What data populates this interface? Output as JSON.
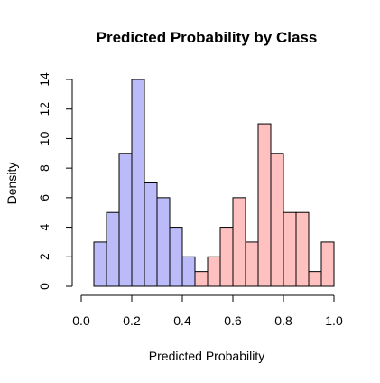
{
  "chart_data": {
    "type": "bar",
    "title": "Predicted Probability by Class",
    "xlabel": "Predicted Probability",
    "ylabel": "Density",
    "xlim": [
      0.0,
      1.0
    ],
    "ylim": [
      0,
      14
    ],
    "xticks": [
      "0.0",
      "0.2",
      "0.4",
      "0.6",
      "0.8",
      "1.0"
    ],
    "yticks": [
      "0",
      "2",
      "4",
      "6",
      "8",
      "10",
      "12",
      "14"
    ],
    "grid": false,
    "legend": "none",
    "series": [
      {
        "color": "#bbbbf9",
        "bins": [
          {
            "x0": 0.05,
            "x1": 0.1,
            "value": 3
          },
          {
            "x0": 0.1,
            "x1": 0.15,
            "value": 5
          },
          {
            "x0": 0.15,
            "x1": 0.2,
            "value": 9
          },
          {
            "x0": 0.2,
            "x1": 0.25,
            "value": 14
          },
          {
            "x0": 0.25,
            "x1": 0.3,
            "value": 7
          },
          {
            "x0": 0.3,
            "x1": 0.35,
            "value": 6
          },
          {
            "x0": 0.35,
            "x1": 0.4,
            "value": 4
          },
          {
            "x0": 0.4,
            "x1": 0.45,
            "value": 2
          }
        ]
      },
      {
        "color": "#ffc0c0",
        "bins": [
          {
            "x0": 0.45,
            "x1": 0.5,
            "value": 1
          },
          {
            "x0": 0.5,
            "x1": 0.55,
            "value": 2
          },
          {
            "x0": 0.55,
            "x1": 0.6,
            "value": 4
          },
          {
            "x0": 0.6,
            "x1": 0.65,
            "value": 6
          },
          {
            "x0": 0.65,
            "x1": 0.7,
            "value": 3
          },
          {
            "x0": 0.7,
            "x1": 0.75,
            "value": 11
          },
          {
            "x0": 0.75,
            "x1": 0.8,
            "value": 9
          },
          {
            "x0": 0.8,
            "x1": 0.85,
            "value": 5
          },
          {
            "x0": 0.85,
            "x1": 0.9,
            "value": 5
          },
          {
            "x0": 0.9,
            "x1": 0.95,
            "value": 1
          },
          {
            "x0": 0.95,
            "x1": 1.0,
            "value": 3
          }
        ]
      }
    ]
  }
}
